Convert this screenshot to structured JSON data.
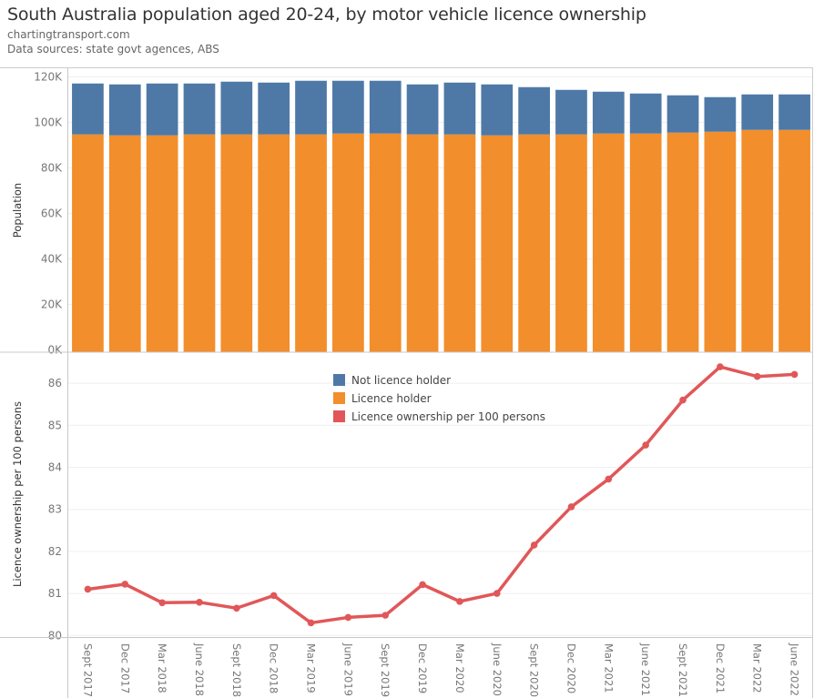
{
  "header": {
    "title": "South Australia population aged 20-24, by motor vehicle licence ownership",
    "source_site": "chartingtransport.com",
    "data_sources": "Data sources: state govt agences, ABS"
  },
  "colors": {
    "not_licence_holder": "#4e79a7",
    "licence_holder": "#f28e2b",
    "licence_ownership_line": "#e15759"
  },
  "chart_data": [
    {
      "type": "bar",
      "stacked": true,
      "title": "",
      "xlabel": "",
      "ylabel": "Population",
      "ylim": [
        0,
        120000
      ],
      "yticks": [
        0,
        20000,
        40000,
        60000,
        80000,
        100000,
        120000
      ],
      "ytick_labels": [
        "0K",
        "20K",
        "40K",
        "60K",
        "80K",
        "100K",
        "120K"
      ],
      "grid": true,
      "categories": [
        "Sept 2017",
        "Dec 2017",
        "Mar 2018",
        "June 2018",
        "Sept 2018",
        "Dec 2018",
        "Mar 2019",
        "June 2019",
        "Sept 2019",
        "Dec 2019",
        "Mar 2020",
        "June 2020",
        "Sept 2020",
        "Dec 2020",
        "Mar 2021",
        "June 2021",
        "Sept 2021",
        "Dec 2021",
        "Mar 2022",
        "June 2022"
      ],
      "series": [
        {
          "name": "Licence holder",
          "values": [
            94700,
            94300,
            94300,
            94700,
            94700,
            94700,
            94700,
            95100,
            95100,
            94700,
            94700,
            94300,
            94700,
            94700,
            95100,
            95100,
            95500,
            95900,
            96700,
            96700
          ]
        },
        {
          "name": "Not licence holder",
          "values": [
            22400,
            22400,
            22800,
            22400,
            23200,
            22800,
            23600,
            23200,
            23200,
            22000,
            22800,
            22400,
            20800,
            19600,
            18400,
            17600,
            16400,
            15200,
            15600,
            15600
          ]
        }
      ]
    },
    {
      "type": "line",
      "title": "",
      "xlabel": "",
      "ylabel": "Licence ownership per 100 persons",
      "ylim": [
        80,
        86.5
      ],
      "yticks": [
        80,
        81,
        82,
        83,
        84,
        85,
        86
      ],
      "ytick_labels": [
        "80",
        "81",
        "82",
        "83",
        "84",
        "85",
        "86"
      ],
      "grid": true,
      "categories": [
        "Sept 2017",
        "Dec 2017",
        "Mar 2018",
        "June 2018",
        "Sept 2018",
        "Dec 2018",
        "Mar 2019",
        "June 2019",
        "Sept 2019",
        "Dec 2019",
        "Mar 2020",
        "June 2020",
        "Sept 2020",
        "Dec 2020",
        "Mar 2021",
        "June 2021",
        "Sept 2021",
        "Dec 2021",
        "Mar 2022",
        "June 2022"
      ],
      "series": [
        {
          "name": "Licence ownership per 100 persons",
          "values": [
            81.1,
            81.22,
            80.78,
            80.79,
            80.65,
            80.95,
            80.3,
            80.43,
            80.48,
            81.21,
            80.81,
            81.0,
            82.15,
            83.06,
            83.72,
            84.53,
            85.6,
            86.39,
            86.16,
            86.21
          ]
        }
      ]
    }
  ],
  "legend": {
    "placement": "top-center of lower panel",
    "items": [
      {
        "label": "Not licence holder",
        "color": "#4e79a7"
      },
      {
        "label": "Licence holder",
        "color": "#f28e2b"
      },
      {
        "label": "Licence ownership per 100 persons",
        "color": "#e15759"
      }
    ]
  }
}
